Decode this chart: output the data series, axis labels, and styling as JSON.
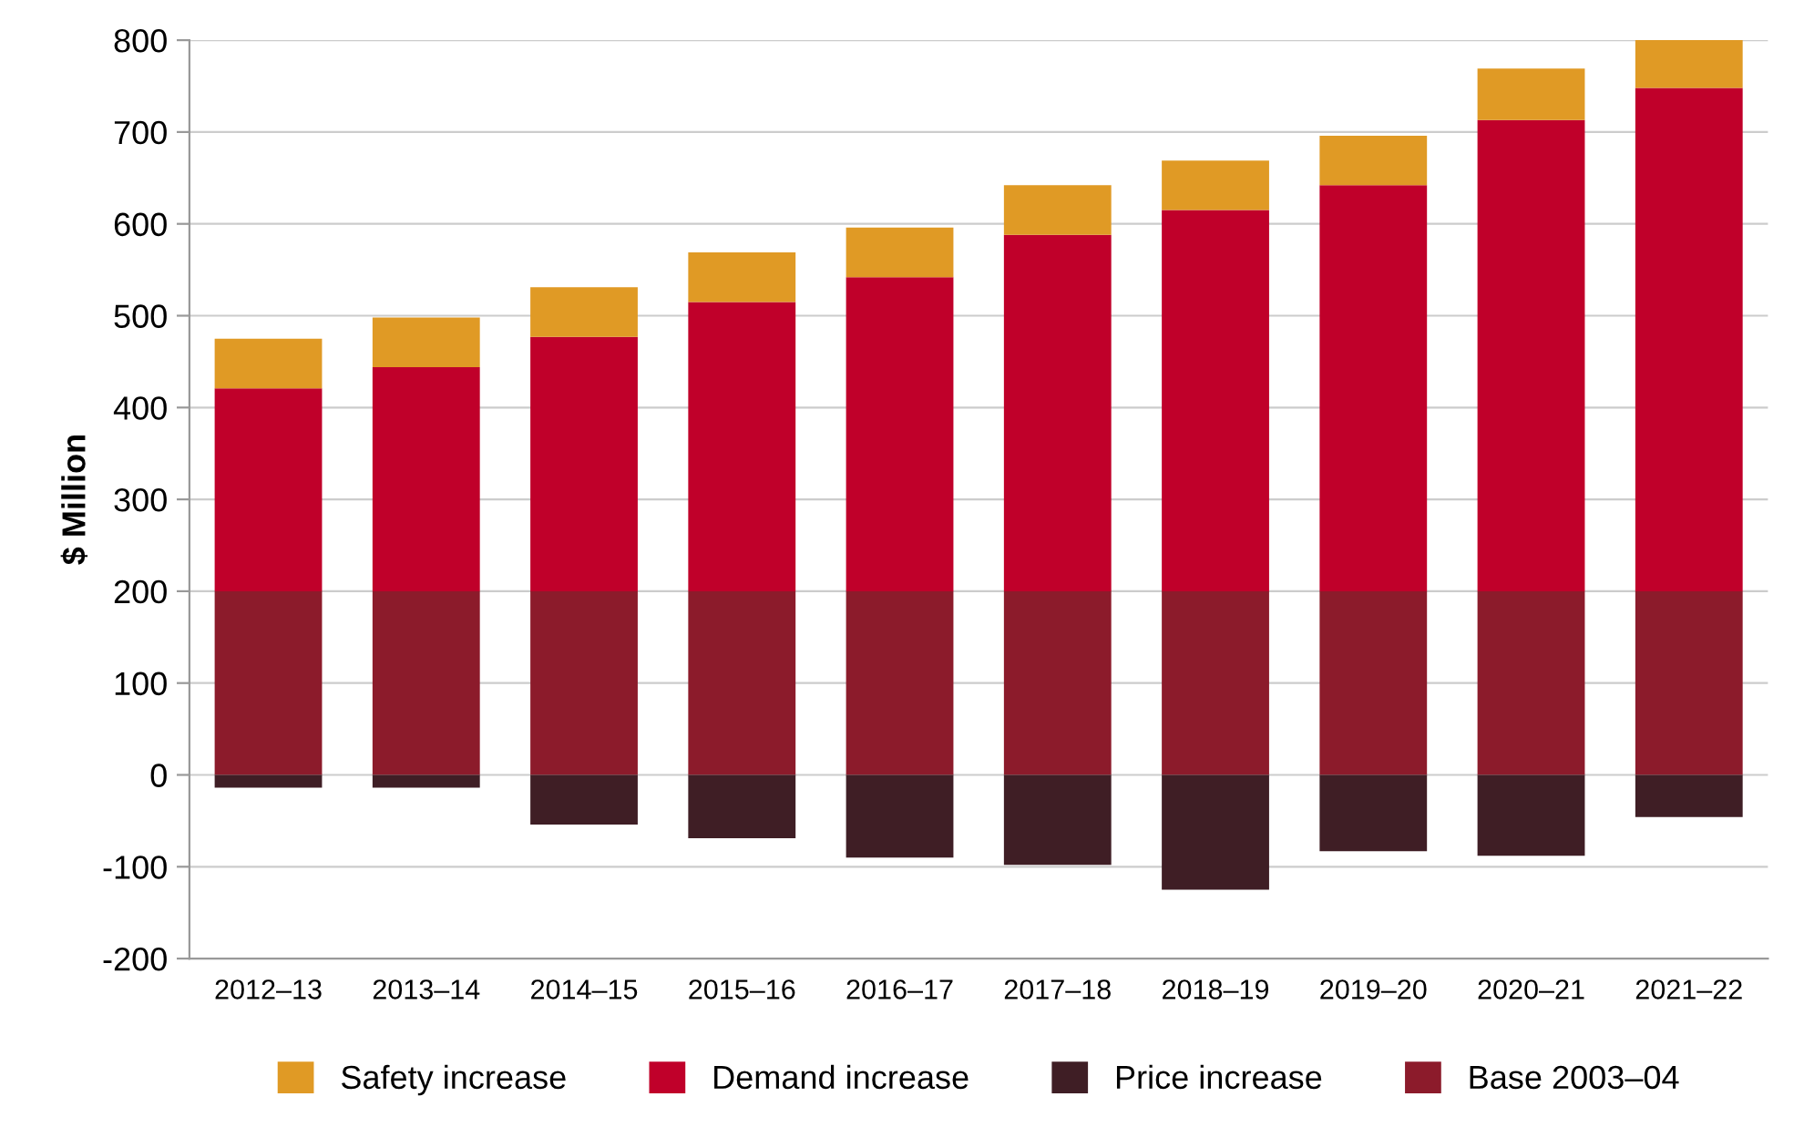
{
  "chart_data": {
    "type": "bar",
    "stacked": true,
    "ylabel": "$ Million",
    "categories": [
      "2012–13",
      "2013–14",
      "2014–15",
      "2015–16",
      "2016–17",
      "2017–18",
      "2018–19",
      "2019–20",
      "2020–21",
      "2021–22"
    ],
    "series": [
      {
        "name": "Base 2003–04",
        "color": "#8c1b2b",
        "values": [
          200,
          200,
          200,
          200,
          200,
          200,
          200,
          200,
          200,
          200
        ]
      },
      {
        "name": "Price increase",
        "color": "#3f1e25",
        "values": [
          -14,
          -14,
          -54,
          -69,
          -90,
          -98,
          -125,
          -83,
          -88,
          -46
        ]
      },
      {
        "name": "Demand increase",
        "color": "#c0002a",
        "values": [
          221,
          244,
          277,
          315,
          342,
          388,
          415,
          442,
          513,
          548
        ]
      },
      {
        "name": "Safety increase",
        "color": "#e09a25",
        "values": [
          54,
          54,
          54,
          54,
          54,
          54,
          54,
          54,
          56,
          54
        ]
      }
    ],
    "ylim": [
      -200,
      800
    ],
    "yticks": [
      -200,
      -100,
      0,
      100,
      200,
      300,
      400,
      500,
      600,
      700,
      800
    ],
    "grid": "y",
    "legend": "bottom"
  }
}
